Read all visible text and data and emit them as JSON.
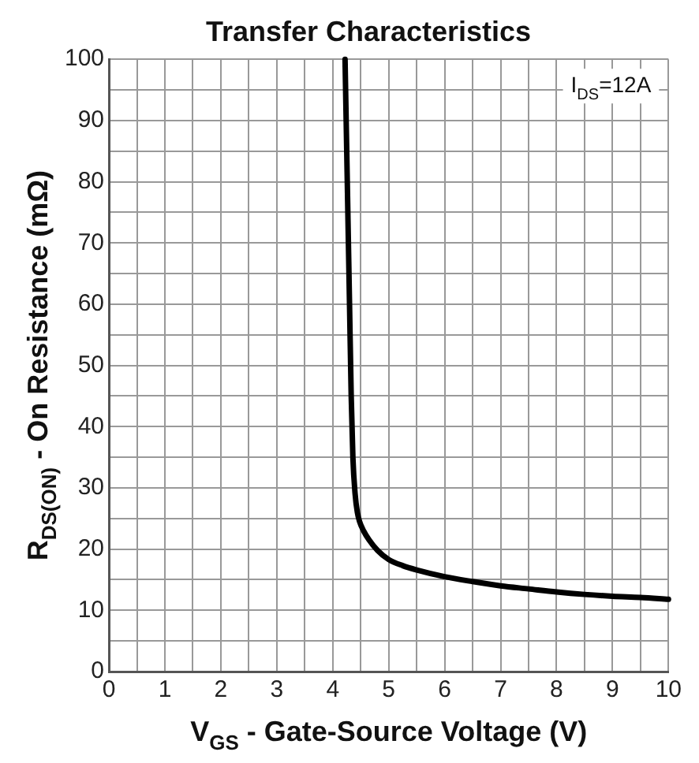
{
  "chart_data": {
    "type": "line",
    "title": "Transfer Characteristics",
    "xlabel": "V$_{GS}$ - Gate-Source Voltage (V)",
    "ylabel": "R$_{DS(ON)}$ - On Resistance (mΩ)",
    "annotations": [
      "I$_{DS}$=12A"
    ],
    "x": [
      4.22,
      4.26,
      4.3,
      4.33,
      4.36,
      4.4,
      4.44,
      4.48,
      4.55,
      4.65,
      4.8,
      5,
      5.25,
      5.5,
      6,
      6.5,
      7,
      7.5,
      8,
      8.5,
      9,
      9.5,
      10
    ],
    "series": [
      {
        "color": "#000000",
        "values": [
          100,
          80,
          60,
          45,
          35,
          29,
          26,
          24.5,
          23,
          21.5,
          19.8,
          18.3,
          17.3,
          16.6,
          15.5,
          14.7,
          14,
          13.5,
          13,
          12.6,
          12.3,
          12.1,
          11.8
        ]
      }
    ],
    "xlim": [
      0,
      10
    ],
    "ylim": [
      0,
      100
    ],
    "xticks": [
      0,
      {
        "value": 0.5,
        "label": null
      },
      1,
      {
        "value": 1.5,
        "label": null
      },
      2,
      {
        "value": 2.5,
        "label": null
      },
      3,
      {
        "value": 3.5,
        "label": null
      },
      4,
      {
        "value": 4.5,
        "label": null
      },
      5,
      {
        "value": 5.5,
        "label": null
      },
      6,
      {
        "value": 6.5,
        "label": null
      },
      7,
      {
        "value": 7.5,
        "label": null
      },
      8,
      {
        "value": 8.5,
        "label": null
      },
      9,
      {
        "value": 9.5,
        "label": null
      },
      10
    ],
    "yticks": [
      0,
      {
        "value": 5,
        "label": null
      },
      10,
      {
        "value": 15,
        "label": null
      },
      20,
      {
        "value": 25,
        "label": null
      },
      30,
      {
        "value": 35,
        "label": null
      },
      40,
      {
        "value": 45,
        "label": null
      },
      50,
      {
        "value": 55,
        "label": null
      },
      60,
      {
        "value": 65,
        "label": null
      },
      70,
      {
        "value": 75,
        "label": null
      },
      80,
      {
        "value": 85,
        "label": null
      },
      90,
      {
        "value": 95,
        "label": null
      },
      100
    ],
    "grid": true,
    "legend": false,
    "marker": "none",
    "line_style": "solid"
  }
}
